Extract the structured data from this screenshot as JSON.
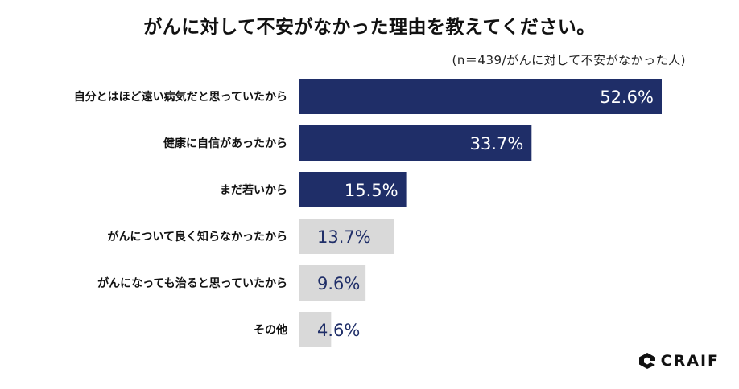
{
  "chart_data": {
    "type": "bar",
    "orientation": "horizontal",
    "title": "がんに対して不安がなかった理由を教えてください。",
    "subtitle": "(n＝439/がんに対して不安がなかった人)",
    "categories": [
      "自分とはほど遠い病気だと思っていたから",
      "健康に自信があったから",
      "まだ若いから",
      "がんについて良く知らなかったから",
      "がんになっても治ると思っていたから",
      "その他"
    ],
    "values": [
      52.6,
      33.7,
      15.5,
      13.7,
      9.6,
      4.6
    ],
    "value_labels": [
      "52.6%",
      "33.7%",
      "15.5%",
      "13.7%",
      "9.6%",
      "4.6%"
    ],
    "xlim": [
      0,
      52.6
    ],
    "grid": false,
    "colors": {
      "highlight": "#1f2e68",
      "normal": "#d9d9d9",
      "highlight_text": "#ffffff",
      "normal_text": "#1f2e68"
    },
    "highlighted_count": 3
  },
  "brand": {
    "name": "CRAIF",
    "icon": "craif-logo-icon"
  }
}
